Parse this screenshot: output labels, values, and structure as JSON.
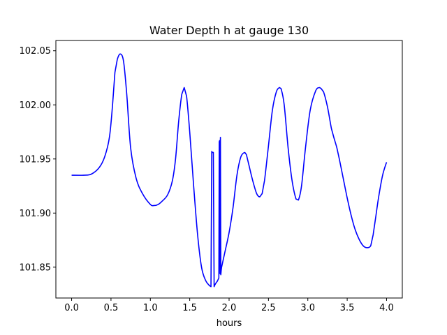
{
  "chart_data": {
    "type": "line",
    "title": "Water Depth h at gauge 130",
    "xlabel": "hours",
    "ylabel": "",
    "xlim": [
      -0.2,
      4.2
    ],
    "ylim": [
      101.8215,
      102.0595
    ],
    "xticks": [
      0.0,
      0.5,
      1.0,
      1.5,
      2.0,
      2.5,
      3.0,
      3.5,
      4.0
    ],
    "xtick_labels": [
      "0.0",
      "0.5",
      "1.0",
      "1.5",
      "2.0",
      "2.5",
      "3.0",
      "3.5",
      "4.0"
    ],
    "yticks": [
      101.85,
      101.9,
      101.95,
      102.0,
      102.05
    ],
    "ytick_labels": [
      "101.85",
      "101.90",
      "101.95",
      "102.00",
      "102.05"
    ],
    "grid": false,
    "series": [
      {
        "color": "#0000ff",
        "x": [
          0.0,
          0.15,
          0.25,
          0.35,
          0.42,
          0.48,
          0.52,
          0.55,
          0.58,
          0.62,
          0.66,
          0.7,
          0.75,
          0.82,
          0.9,
          1.0,
          1.05,
          1.1,
          1.15,
          1.22,
          1.28,
          1.32,
          1.36,
          1.4,
          1.43,
          1.46,
          1.5,
          1.55,
          1.6,
          1.65,
          1.7,
          1.75,
          1.77,
          1.78,
          1.785,
          1.8,
          1.81,
          1.815,
          1.83,
          1.85,
          1.87,
          1.875,
          1.88,
          1.885,
          1.89,
          1.895,
          1.9,
          1.905,
          1.92,
          1.95,
          2.0,
          2.05,
          2.1,
          2.15,
          2.2,
          2.22,
          2.25,
          2.3,
          2.35,
          2.39,
          2.42,
          2.45,
          2.5,
          2.55,
          2.6,
          2.64,
          2.66,
          2.7,
          2.75,
          2.8,
          2.85,
          2.88,
          2.92,
          2.97,
          3.03,
          3.1,
          3.15,
          3.17,
          3.2,
          3.25,
          3.3,
          3.33,
          3.37,
          3.4,
          3.45,
          3.5,
          3.55,
          3.6,
          3.65,
          3.7,
          3.75,
          3.8,
          3.83,
          3.86,
          3.9,
          3.95,
          4.0
        ],
        "y": [
          101.935,
          101.935,
          101.936,
          101.942,
          101.952,
          101.97,
          102.0,
          102.03,
          102.042,
          102.047,
          102.04,
          102.01,
          101.96,
          101.932,
          101.918,
          101.908,
          101.907,
          101.908,
          101.911,
          101.917,
          101.93,
          101.95,
          101.985,
          102.01,
          102.016,
          102.008,
          101.975,
          101.925,
          101.88,
          101.85,
          101.838,
          101.833,
          101.832,
          101.957,
          101.956,
          101.956,
          101.832,
          101.833,
          101.835,
          101.837,
          101.84,
          101.966,
          101.967,
          101.844,
          101.97,
          101.843,
          101.847,
          101.85,
          101.855,
          101.865,
          101.882,
          101.905,
          101.935,
          101.952,
          101.956,
          101.954,
          101.945,
          101.93,
          101.918,
          101.915,
          101.918,
          101.93,
          101.962,
          101.995,
          102.012,
          102.016,
          102.015,
          102.0,
          101.96,
          101.93,
          101.913,
          101.912,
          101.925,
          101.96,
          101.995,
          102.013,
          102.016,
          102.015,
          102.012,
          101.998,
          101.978,
          101.97,
          101.96,
          101.95,
          101.932,
          101.914,
          101.898,
          101.885,
          101.876,
          101.87,
          101.868,
          101.87,
          101.88,
          101.895,
          101.915,
          101.935,
          101.947
        ]
      }
    ]
  }
}
